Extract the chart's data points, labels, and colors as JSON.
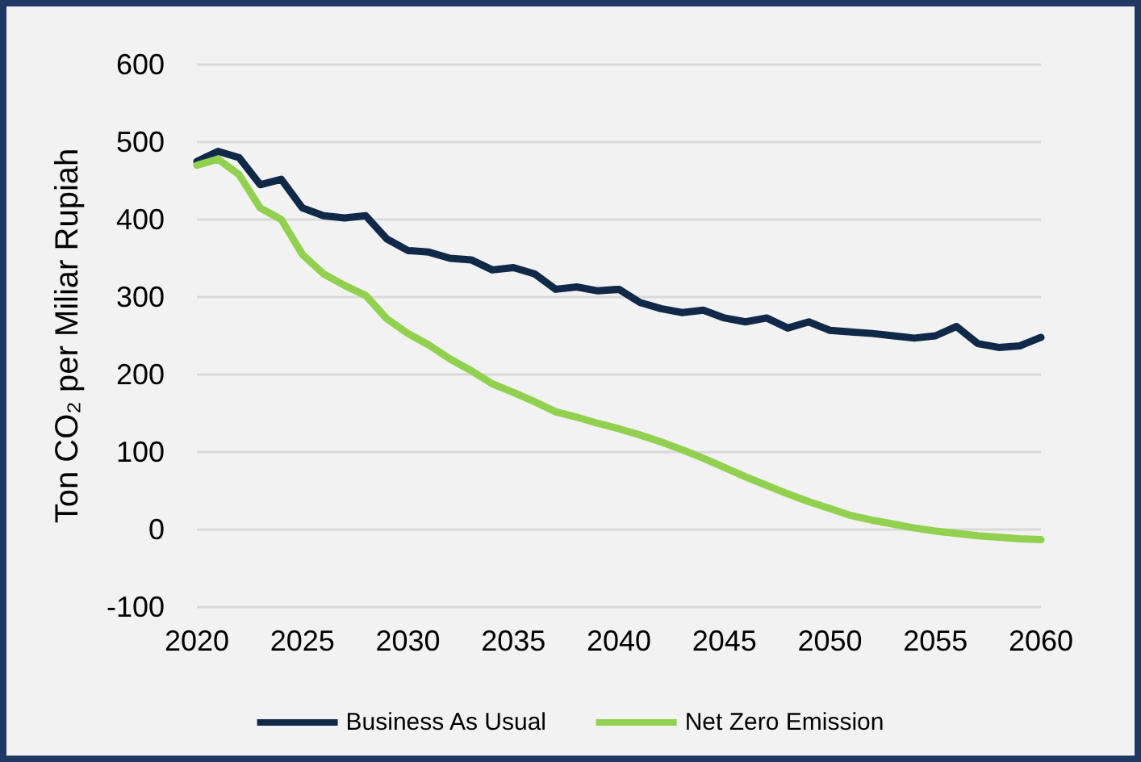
{
  "chart_data": {
    "type": "line",
    "ylabel": "Ton CO₂ per Miliar Rupiah",
    "x": [
      2020,
      2021,
      2022,
      2023,
      2024,
      2025,
      2026,
      2027,
      2028,
      2029,
      2030,
      2031,
      2032,
      2033,
      2034,
      2035,
      2036,
      2037,
      2038,
      2039,
      2040,
      2041,
      2042,
      2043,
      2044,
      2045,
      2046,
      2047,
      2048,
      2049,
      2050,
      2051,
      2052,
      2053,
      2054,
      2055,
      2056,
      2057,
      2058,
      2059,
      2060
    ],
    "series": [
      {
        "name": "Business As Usual",
        "color": "#112949",
        "values": [
          475,
          488,
          480,
          445,
          452,
          415,
          405,
          402,
          405,
          375,
          360,
          358,
          350,
          348,
          335,
          338,
          330,
          310,
          313,
          308,
          310,
          293,
          285,
          280,
          283,
          273,
          268,
          273,
          260,
          268,
          257,
          255,
          253,
          250,
          247,
          250,
          262,
          240,
          235,
          237,
          248
        ]
      },
      {
        "name": "Net Zero Emission",
        "color": "#92d050",
        "values": [
          470,
          478,
          458,
          415,
          400,
          355,
          330,
          315,
          302,
          272,
          253,
          238,
          220,
          205,
          188,
          177,
          165,
          152,
          145,
          137,
          130,
          122,
          113,
          103,
          92,
          80,
          68,
          57,
          46,
          36,
          27,
          18,
          12,
          7,
          2,
          -2,
          -5,
          -8,
          -10,
          -12,
          -13
        ]
      }
    ],
    "xlim": [
      2020,
      2060
    ],
    "xticks": [
      2020,
      2025,
      2030,
      2035,
      2040,
      2045,
      2050,
      2055,
      2060
    ],
    "ylim": [
      -100,
      600
    ],
    "yticks": [
      -100,
      0,
      100,
      200,
      300,
      400,
      500,
      600
    ],
    "grid": "y",
    "legend": "bottom",
    "marker": "none",
    "line_style": "solid"
  }
}
